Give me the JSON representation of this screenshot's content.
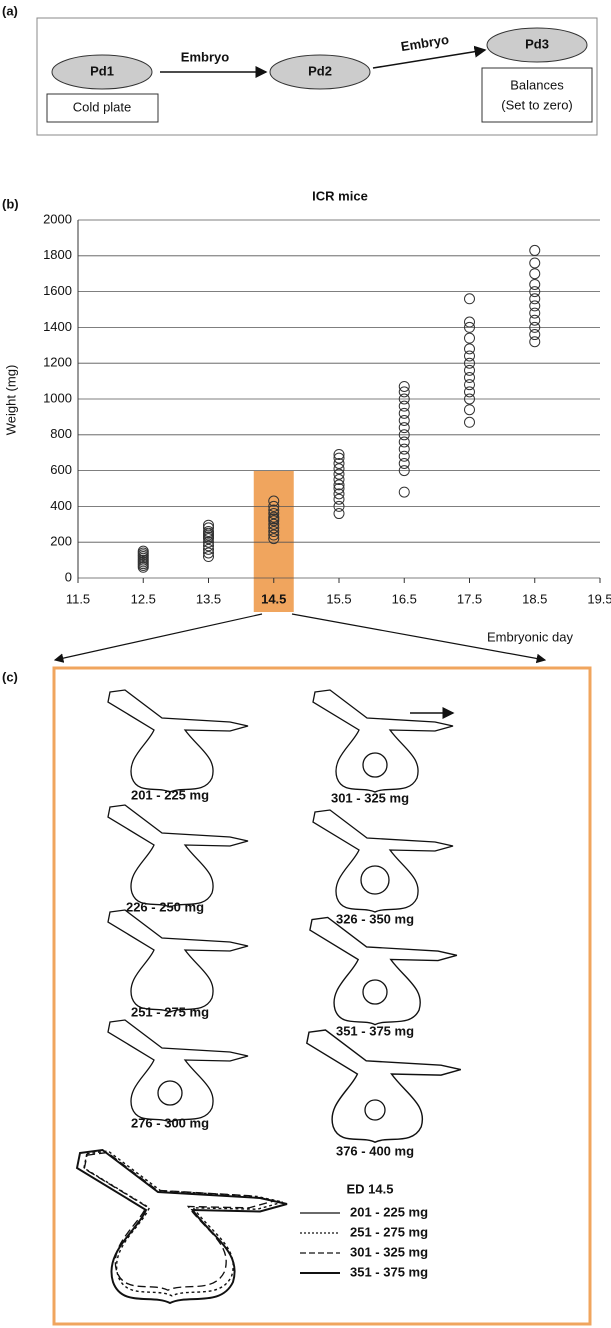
{
  "panel_a": {
    "label": "(a)",
    "node_1": "Pd1",
    "node_1_note": "Cold plate",
    "edge_1": "Embryo",
    "node_2": "Pd2",
    "edge_2": "Embryo",
    "node_3": "Pd3",
    "node_3_note": "Balances",
    "node_3_subnote": "(Set to zero)"
  },
  "chart_data": {
    "type": "scatter",
    "panel_label": "(b)",
    "title": "ICR mice",
    "x_label": "Embryonic day",
    "y_label": "Weight (mg)",
    "x": [
      12.5,
      12.5,
      12.5,
      12.5,
      12.5,
      12.5,
      12.5,
      12.5,
      12.5,
      12.5,
      13.5,
      13.5,
      13.5,
      13.5,
      13.5,
      13.5,
      13.5,
      13.5,
      13.5,
      13.5,
      13.5,
      13.5,
      14.5,
      14.5,
      14.5,
      14.5,
      14.5,
      14.5,
      14.5,
      14.5,
      14.5,
      14.5,
      14.5,
      14.5,
      15.5,
      15.5,
      15.5,
      15.5,
      15.5,
      15.5,
      15.5,
      15.5,
      15.5,
      15.5,
      15.5,
      15.5,
      16.5,
      16.5,
      16.5,
      16.5,
      16.5,
      16.5,
      16.5,
      16.5,
      16.5,
      16.5,
      16.5,
      16.5,
      16.5,
      16.5,
      17.5,
      17.5,
      17.5,
      17.5,
      17.5,
      17.5,
      17.5,
      17.5,
      17.5,
      17.5,
      17.5,
      17.5,
      17.5,
      17.5,
      18.5,
      18.5,
      18.5,
      18.5,
      18.5,
      18.5,
      18.5,
      18.5,
      18.5,
      18.5,
      18.5,
      18.5
    ],
    "values": [
      60,
      70,
      80,
      90,
      100,
      110,
      120,
      130,
      140,
      150,
      120,
      140,
      160,
      180,
      200,
      220,
      230,
      240,
      250,
      260,
      280,
      295,
      220,
      240,
      260,
      280,
      300,
      320,
      330,
      340,
      360,
      380,
      400,
      430,
      360,
      400,
      440,
      470,
      500,
      520,
      550,
      580,
      610,
      640,
      670,
      690,
      480,
      600,
      640,
      680,
      720,
      760,
      800,
      840,
      880,
      920,
      960,
      1000,
      1040,
      1070,
      870,
      940,
      1000,
      1040,
      1080,
      1120,
      1160,
      1200,
      1240,
      1280,
      1340,
      1400,
      1430,
      1560,
      1320,
      1360,
      1400,
      1440,
      1480,
      1520,
      1560,
      1600,
      1640,
      1700,
      1760,
      1830
    ],
    "color": "#333333",
    "xlim": [
      11.5,
      19.5
    ],
    "xticks": [
      11.5,
      12.5,
      13.5,
      14.5,
      15.5,
      16.5,
      17.5,
      18.5,
      19.5
    ],
    "ylim": [
      0,
      2000
    ],
    "yticks": [
      0,
      200,
      400,
      600,
      800,
      1000,
      1200,
      1400,
      1600,
      1800,
      2000
    ],
    "grid": true,
    "highlight": {
      "x": 14.5,
      "y": 600,
      "color": "#f0a55e"
    }
  },
  "panel_c": {
    "label": "(c)",
    "stages": [
      "201 - 225 mg",
      "226 - 250 mg",
      "251 - 275 mg",
      "276 - 300 mg",
      "301 - 325 mg",
      "326 - 350 mg",
      "351 - 375 mg",
      "376 - 400 mg"
    ],
    "legend_title": "ED 14.5",
    "legend": [
      "201 - 225 mg",
      "251 - 275 mg",
      "301 - 325 mg",
      "351 - 375 mg"
    ]
  }
}
